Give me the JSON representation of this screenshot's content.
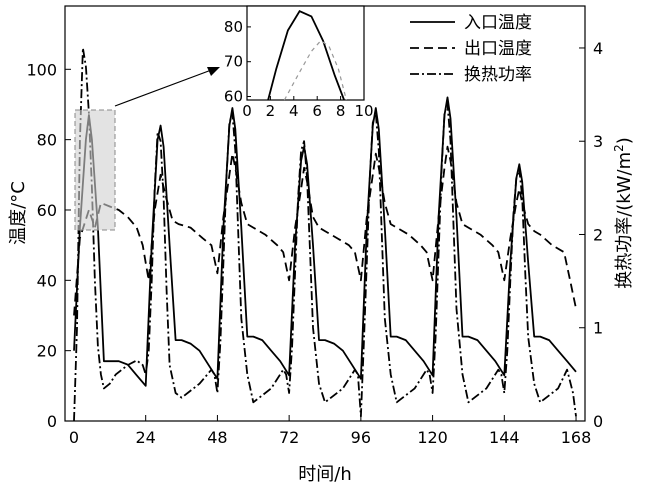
{
  "chart_data": {
    "type": "line",
    "xlabel": "时间/h",
    "ylabel": "温度/°C",
    "y2label_main": "换热功率/(kW/m",
    "y2label_sup": "2",
    "y2label_end": ")",
    "xlim": [
      -3,
      171
    ],
    "ylim": [
      0,
      118
    ],
    "y2lim": [
      0,
      4.45
    ],
    "xticks": [
      0,
      24,
      48,
      72,
      96,
      120,
      144,
      168
    ],
    "yticks": [
      0,
      20,
      40,
      60,
      80,
      100
    ],
    "y2ticks": [
      0,
      1,
      2,
      3,
      4
    ],
    "legend": {
      "position": "top-right",
      "entries": [
        "入口温度",
        "出口温度",
        "换热功率"
      ]
    },
    "series": [
      {
        "name": "入口温度",
        "axis": "left",
        "x": [
          0,
          2,
          4,
          5,
          6,
          8,
          10,
          12,
          15,
          18,
          21,
          24,
          26,
          28,
          29,
          30,
          32,
          34,
          36,
          39,
          42,
          45,
          48,
          50,
          52,
          53,
          54,
          56,
          58,
          60,
          63,
          66,
          69,
          72,
          74,
          76,
          77,
          78,
          80,
          82,
          84,
          87,
          90,
          93,
          96,
          98,
          100,
          101,
          102,
          104,
          106,
          108,
          111,
          114,
          117,
          120,
          122,
          124,
          125,
          126,
          128,
          130,
          132,
          135,
          138,
          141,
          144,
          146,
          148,
          149,
          150,
          152,
          154,
          156,
          159,
          162,
          165,
          168
        ],
        "values": [
          20,
          55,
          80,
          87,
          80,
          55,
          17,
          17,
          17,
          16,
          13,
          10,
          50,
          80,
          84,
          78,
          50,
          23,
          23,
          22,
          20,
          16,
          12,
          55,
          84,
          89,
          83,
          55,
          24,
          24,
          23,
          20,
          17,
          13,
          50,
          74,
          78,
          73,
          50,
          23,
          23,
          22,
          20,
          16,
          12,
          55,
          84,
          89,
          83,
          55,
          24,
          24,
          23,
          20,
          17,
          13,
          58,
          87,
          92,
          86,
          58,
          24,
          24,
          23,
          20,
          17,
          13,
          45,
          69,
          73,
          68,
          45,
          24,
          24,
          23,
          20,
          17,
          14
        ]
      },
      {
        "name": "出口温度",
        "axis": "left",
        "x": [
          0,
          2,
          5,
          7,
          9,
          12,
          15,
          18,
          21,
          23,
          25,
          27,
          29,
          31,
          33,
          35,
          39,
          43,
          46,
          48,
          50,
          52,
          53,
          54,
          56,
          58,
          60,
          64,
          68,
          70,
          72,
          74,
          76,
          77,
          78,
          80,
          82,
          84,
          88,
          92,
          94,
          96,
          98,
          100,
          101,
          102,
          104,
          106,
          108,
          112,
          116,
          118,
          120,
          122,
          124,
          125,
          126,
          128,
          130,
          132,
          136,
          140,
          142,
          144,
          146,
          148,
          149,
          150,
          152,
          154,
          156,
          160,
          164,
          166,
          168
        ],
        "values": [
          30,
          52,
          60,
          55,
          62,
          61,
          60,
          58,
          55,
          50,
          40,
          60,
          70,
          63,
          57,
          56,
          55,
          52,
          50,
          42,
          58,
          70,
          76,
          72,
          62,
          56,
          55,
          53,
          50,
          48,
          40,
          55,
          66,
          72,
          68,
          58,
          55,
          54,
          52,
          50,
          48,
          40,
          58,
          70,
          76,
          72,
          62,
          56,
          55,
          53,
          50,
          48,
          40,
          58,
          72,
          78,
          74,
          62,
          56,
          55,
          53,
          50,
          48,
          40,
          52,
          62,
          66,
          62,
          56,
          54,
          53,
          50,
          48,
          40,
          32
        ]
      },
      {
        "name": "换热功率",
        "axis": "right",
        "x": [
          0,
          1,
          2,
          3,
          4,
          5,
          6,
          7,
          8,
          9,
          10,
          12,
          14,
          18,
          21,
          23,
          24,
          25,
          26,
          27,
          28,
          29,
          30,
          31,
          32,
          34,
          36,
          42,
          46,
          47,
          48,
          49,
          50,
          51,
          52,
          53,
          54,
          55,
          56,
          58,
          60,
          66,
          70,
          71,
          72,
          73,
          74,
          75,
          76,
          77,
          78,
          79,
          80,
          82,
          84,
          90,
          94,
          95,
          96,
          97,
          98,
          99,
          100,
          101,
          102,
          103,
          104,
          106,
          108,
          114,
          118,
          119,
          120,
          121,
          122,
          123,
          124,
          125,
          126,
          127,
          128,
          130,
          132,
          138,
          142,
          143,
          144,
          145,
          146,
          147,
          148,
          149,
          150,
          151,
          152,
          154,
          156,
          162,
          165,
          167,
          168
        ],
        "values": [
          0,
          1.0,
          3.0,
          4.0,
          3.8,
          3.3,
          2.5,
          1.5,
          0.8,
          0.5,
          0.35,
          0.4,
          0.5,
          0.6,
          0.65,
          0.6,
          0.5,
          0.75,
          1.5,
          2.5,
          3.1,
          3.0,
          2.4,
          1.4,
          0.6,
          0.3,
          0.25,
          0.4,
          0.55,
          0.5,
          0.3,
          0.85,
          1.7,
          2.6,
          3.2,
          3.3,
          2.9,
          2.0,
          1.1,
          0.5,
          0.2,
          0.35,
          0.55,
          0.5,
          0.3,
          0.8,
          1.6,
          2.4,
          2.9,
          3.0,
          2.6,
          1.8,
          1.0,
          0.4,
          0.2,
          0.35,
          0.55,
          0.5,
          0.05,
          0.85,
          1.7,
          2.6,
          3.2,
          3.3,
          2.9,
          2.0,
          1.1,
          0.5,
          0.2,
          0.35,
          0.55,
          0.5,
          0.3,
          0.9,
          1.8,
          2.7,
          3.3,
          3.4,
          3.0,
          2.1,
          1.2,
          0.5,
          0.2,
          0.35,
          0.55,
          0.5,
          0.3,
          0.75,
          1.5,
          2.2,
          2.6,
          2.7,
          2.4,
          1.6,
          0.9,
          0.4,
          0.2,
          0.35,
          0.55,
          0.3,
          0.05
        ]
      }
    ],
    "inset": {
      "xlim": [
        0,
        10
      ],
      "ylim": [
        59,
        86
      ],
      "xticks": [
        0,
        2,
        4,
        6,
        8,
        10
      ],
      "yticks": [
        60,
        70,
        80
      ],
      "series": [
        {
          "name": "入口温度",
          "x": [
            1.8,
            2.5,
            3.5,
            4.5,
            5.5,
            6.5,
            7.5,
            8.3
          ],
          "values": [
            59,
            68,
            79,
            84.5,
            83,
            76,
            66,
            59
          ]
        },
        {
          "name": "出口温度",
          "x": [
            3.2,
            4.5,
            5.5,
            6.3,
            7,
            7.8,
            8.5
          ],
          "values": [
            59,
            67,
            73,
            76,
            74.5,
            68,
            59
          ]
        }
      ]
    }
  }
}
